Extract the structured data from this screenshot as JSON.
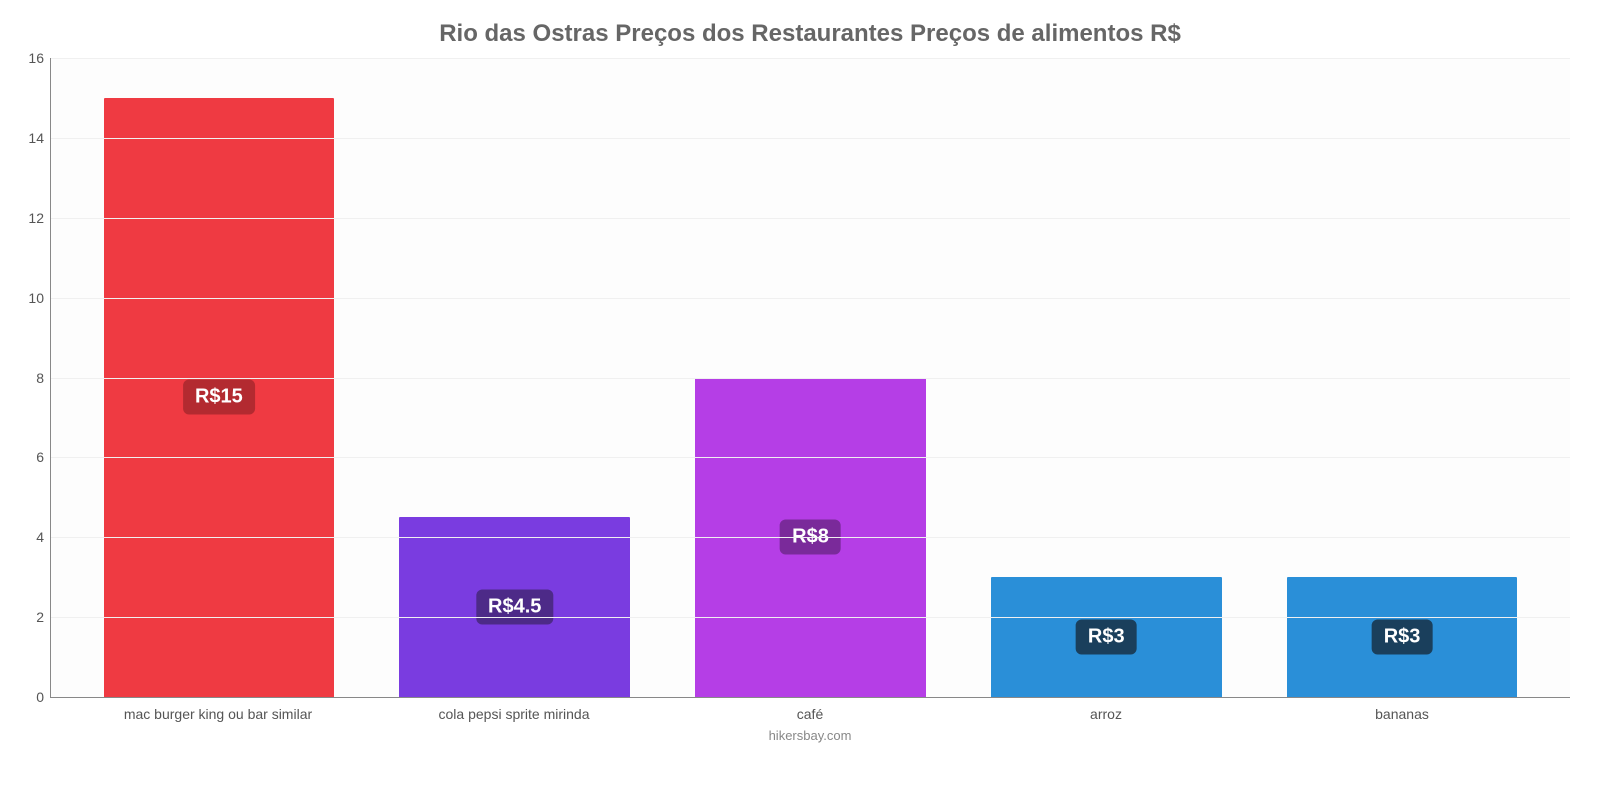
{
  "chart": {
    "type": "bar",
    "title": "Rio das Ostras Preços dos Restaurantes Preços de alimentos R$",
    "title_color": "#666666",
    "title_fontsize": 24,
    "background_color": "#ffffff",
    "plot_bg": "#fdfdfd",
    "grid_color": "#f0f0f0",
    "axis_color": "#888888",
    "label_color": "#555555",
    "label_fontsize": 14,
    "ylim": [
      0,
      16
    ],
    "ytick_step": 2,
    "yticks": [
      0,
      2,
      4,
      6,
      8,
      10,
      12,
      14,
      16
    ],
    "bar_width_pct": 78,
    "source": "hikersbay.com",
    "categories": [
      "mac burger king ou bar similar",
      "cola pepsi sprite mirinda",
      "café",
      "arroz",
      "bananas"
    ],
    "series": [
      {
        "value": 15,
        "label": "R$15",
        "bar_color": "#ef3a42",
        "badge_bg": "#b32a30"
      },
      {
        "value": 4.5,
        "label": "R$4.5",
        "bar_color": "#7a3ce0",
        "badge_bg": "#4d2a88"
      },
      {
        "value": 8,
        "label": "R$8",
        "bar_color": "#b53ee6",
        "badge_bg": "#7a2a9a"
      },
      {
        "value": 3,
        "label": "R$3",
        "bar_color": "#2a8fd8",
        "badge_bg": "#1a3f5c"
      },
      {
        "value": 3,
        "label": "R$3",
        "bar_color": "#2a8fd8",
        "badge_bg": "#1a3f5c"
      }
    ],
    "value_fontsize": 20,
    "value_color": "#ffffff"
  }
}
